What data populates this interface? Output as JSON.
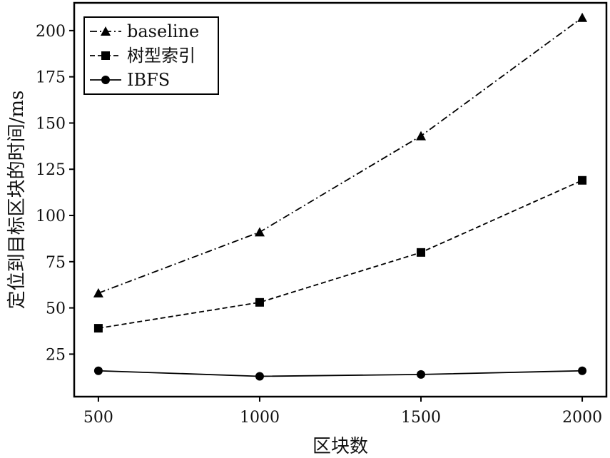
{
  "chart_data": {
    "type": "line",
    "x": [
      500,
      1000,
      1500,
      2000
    ],
    "x_ticks": [
      "500",
      "1000",
      "1500",
      "2000"
    ],
    "y_ticks": [
      "25",
      "50",
      "75",
      "100",
      "125",
      "150",
      "175",
      "200"
    ],
    "y_tick_values": [
      25,
      50,
      75,
      100,
      125,
      150,
      175,
      200
    ],
    "xlabel": "区块数",
    "ylabel": "定位到目标区块的时间/ms",
    "xlim": [
      425,
      2075
    ],
    "ylim": [
      2,
      215
    ],
    "grid": false,
    "legend_position": "top-left",
    "series": [
      {
        "name": "baseline",
        "marker": "triangle",
        "dash": "dash-dot",
        "values": [
          58,
          91,
          143,
          207
        ]
      },
      {
        "name": "树型索引",
        "marker": "square",
        "dash": "dashed",
        "values": [
          39,
          53,
          80,
          119
        ]
      },
      {
        "name": "IBFS",
        "marker": "circle",
        "dash": "solid",
        "values": [
          16,
          13,
          14,
          16
        ]
      }
    ],
    "colors": {
      "line": "#000000",
      "background": "#ffffff"
    }
  }
}
